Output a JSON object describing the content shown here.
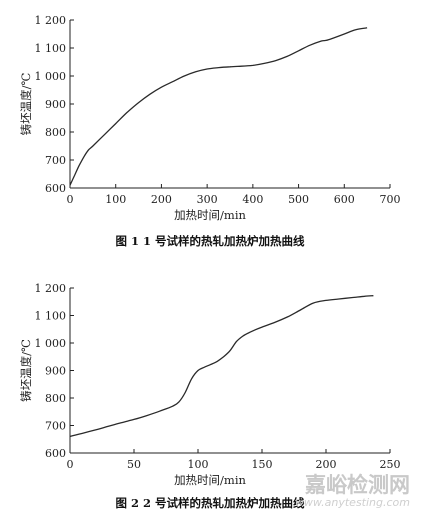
{
  "chart_data": [
    {
      "type": "line",
      "ylabel": "铸坯温度/℃",
      "xlabel": "加热时间/min",
      "caption": "图 1 1 号试样的热轧加热炉加热曲线",
      "xlim": [
        0,
        700
      ],
      "ylim": [
        600,
        1200
      ],
      "xticks": [
        0,
        100,
        200,
        300,
        400,
        500,
        600,
        700
      ],
      "yticks": [
        600,
        700,
        800,
        900,
        1000,
        1100,
        1200
      ],
      "xtick_labels": [
        "0",
        "100",
        "200",
        "300",
        "400",
        "500",
        "600",
        "700"
      ],
      "ytick_labels": [
        "600",
        "700",
        "800",
        "900",
        "1 000",
        "1 100",
        "1 200"
      ],
      "grid": false,
      "series": [
        {
          "x": [
            0,
            10,
            20,
            30,
            40,
            50,
            75,
            100,
            125,
            150,
            175,
            200,
            225,
            250,
            275,
            300,
            325,
            350,
            375,
            400,
            425,
            450,
            475,
            500,
            525,
            550,
            560,
            575,
            600,
            625,
            650
          ],
          "y": [
            610,
            645,
            680,
            710,
            735,
            750,
            790,
            830,
            870,
            905,
            935,
            960,
            980,
            1000,
            1015,
            1025,
            1030,
            1033,
            1035,
            1038,
            1045,
            1055,
            1070,
            1090,
            1110,
            1125,
            1127,
            1135,
            1150,
            1165,
            1172
          ]
        }
      ]
    },
    {
      "type": "line",
      "ylabel": "铸坯温度/℃",
      "xlabel": "加热时间/min",
      "caption": "图 2 2 号试样的热轧加热炉加热曲线",
      "xlim": [
        0,
        250
      ],
      "ylim": [
        600,
        1200
      ],
      "xticks": [
        0,
        50,
        100,
        150,
        200,
        250
      ],
      "yticks": [
        600,
        700,
        800,
        900,
        1000,
        1100,
        1200
      ],
      "xtick_labels": [
        "0",
        "50",
        "100",
        "150",
        "200",
        "250"
      ],
      "ytick_labels": [
        "600",
        "700",
        "800",
        "900",
        "1 000",
        "1 100",
        "1 200"
      ],
      "grid": false,
      "series": [
        {
          "x": [
            0,
            10,
            20,
            30,
            40,
            50,
            60,
            70,
            80,
            85,
            90,
            95,
            100,
            105,
            110,
            115,
            120,
            125,
            130,
            135,
            140,
            150,
            160,
            170,
            180,
            190,
            200,
            210,
            220,
            230,
            237
          ],
          "y": [
            660,
            672,
            684,
            697,
            710,
            722,
            736,
            752,
            770,
            785,
            820,
            870,
            900,
            912,
            922,
            933,
            950,
            972,
            1005,
            1025,
            1038,
            1058,
            1075,
            1095,
            1120,
            1145,
            1155,
            1160,
            1165,
            1170,
            1172
          ]
        }
      ]
    }
  ],
  "watermark": {
    "text": "嘉峪检测网",
    "sub": "www.anytesting.com"
  },
  "colors": {
    "line": "#2a2a2a",
    "axis": "#222222"
  }
}
